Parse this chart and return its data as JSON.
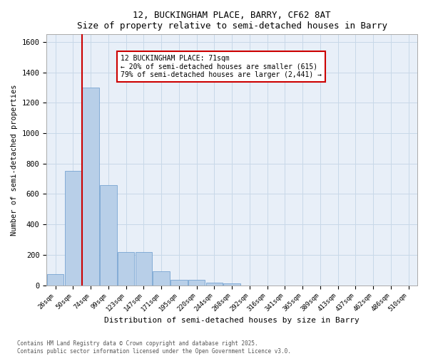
{
  "title_line1": "12, BUCKINGHAM PLACE, BARRY, CF62 8AT",
  "title_line2": "Size of property relative to semi-detached houses in Barry",
  "xlabel": "Distribution of semi-detached houses by size in Barry",
  "ylabel": "Number of semi-detached properties",
  "bar_labels": [
    "26sqm",
    "50sqm",
    "74sqm",
    "99sqm",
    "123sqm",
    "147sqm",
    "171sqm",
    "195sqm",
    "220sqm",
    "244sqm",
    "268sqm",
    "292sqm",
    "316sqm",
    "341sqm",
    "365sqm",
    "389sqm",
    "413sqm",
    "437sqm",
    "462sqm",
    "486sqm",
    "510sqm"
  ],
  "bar_heights": [
    75,
    750,
    1300,
    660,
    220,
    220,
    90,
    35,
    35,
    15,
    10,
    0,
    0,
    0,
    0,
    0,
    0,
    0,
    0,
    0,
    0
  ],
  "bar_color": "#b8cfe8",
  "bar_edge_color": "#6699cc",
  "grid_color": "#c8d8e8",
  "background_color": "#e8eff8",
  "vline_color": "#cc0000",
  "annotation_title": "12 BUCKINGHAM PLACE: 71sqm",
  "annotation_line1": "← 20% of semi-detached houses are smaller (615)",
  "annotation_line2": "79% of semi-detached houses are larger (2,441) →",
  "annotation_box_color": "#cc0000",
  "ylim": [
    0,
    1650
  ],
  "yticks": [
    0,
    200,
    400,
    600,
    800,
    1000,
    1200,
    1400,
    1600
  ],
  "footer_line1": "Contains HM Land Registry data © Crown copyright and database right 2025.",
  "footer_line2": "Contains public sector information licensed under the Open Government Licence v3.0."
}
